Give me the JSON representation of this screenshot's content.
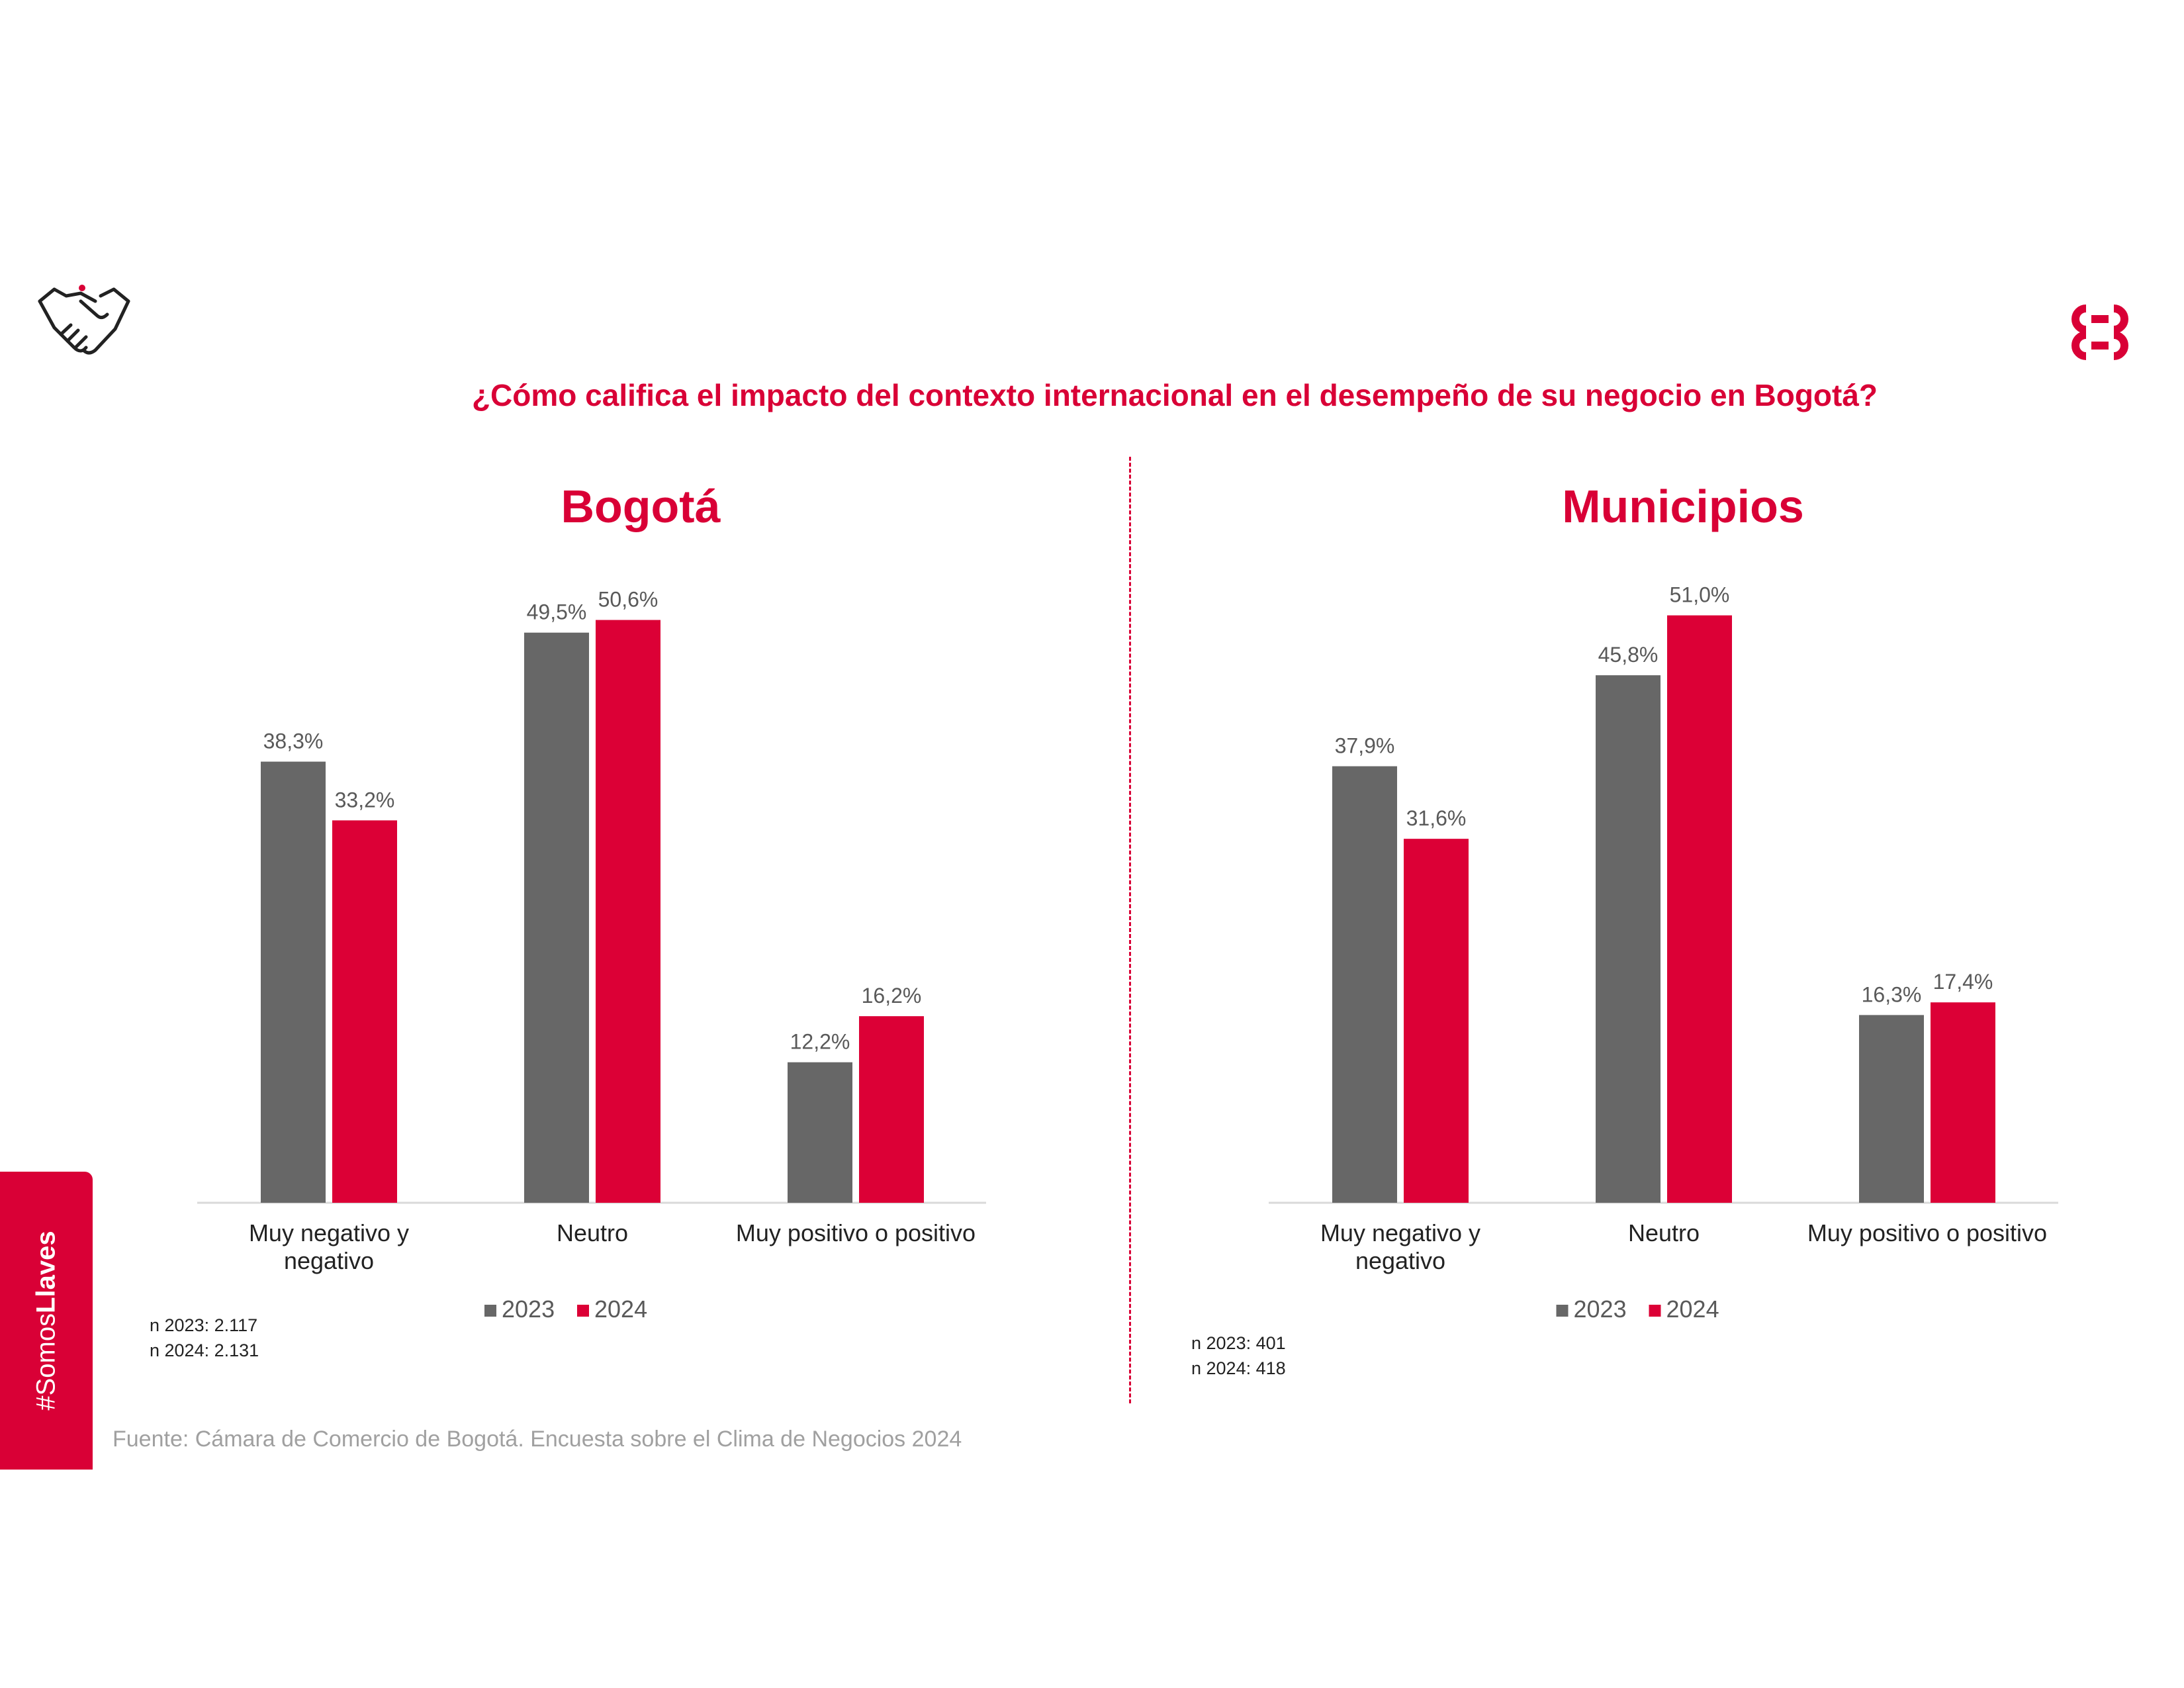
{
  "header": {
    "title": "¿Cómo califica el impacto del contexto internacional en el desempeño de su negocio en Bogotá?"
  },
  "icons": {
    "left": "handshake-icon",
    "right": "ccb-logo"
  },
  "colors": {
    "accent": "#d90036",
    "series_2023": "#676767",
    "series_2024": "#dc0036",
    "axis": "#d9d9d9",
    "labels": "#595959"
  },
  "chart_data": [
    {
      "type": "bar",
      "title": "Bogotá",
      "categories": [
        [
          "Muy negativo y",
          "negativo"
        ],
        [
          "Neutro"
        ],
        [
          "Muy positivo o positivo"
        ]
      ],
      "series": [
        {
          "name": "2023",
          "values": [
            38.3,
            49.5,
            12.2
          ],
          "labels": [
            "38,3%",
            "49,5%",
            "12,2%"
          ]
        },
        {
          "name": "2024",
          "values": [
            33.2,
            50.6,
            16.2
          ],
          "labels": [
            "33,2%",
            "50,6%",
            "16,2%"
          ]
        }
      ],
      "ylim": [
        0,
        60
      ],
      "legend": "bottom",
      "grid": false,
      "notes": [
        "n 2023: 2.117",
        "n 2024: 2.131"
      ]
    },
    {
      "type": "bar",
      "title": "Municipios",
      "categories": [
        [
          "Muy negativo y",
          "negativo"
        ],
        [
          "Neutro"
        ],
        [
          "Muy positivo o positivo"
        ]
      ],
      "series": [
        {
          "name": "2023",
          "values": [
            37.9,
            45.8,
            16.3
          ],
          "labels": [
            "37,9%",
            "45,8%",
            "16,3%"
          ]
        },
        {
          "name": "2024",
          "values": [
            31.6,
            51.0,
            17.4
          ],
          "labels": [
            "31,6%",
            "51,0%",
            "17,4%"
          ]
        }
      ],
      "ylim": [
        0,
        60
      ],
      "legend": "bottom",
      "grid": false,
      "notes": [
        "n 2023: 401",
        "n 2024: 418"
      ]
    }
  ],
  "sidebar": {
    "tag_prefix": "#Somos",
    "tag_bold": "Llaves"
  },
  "footer": {
    "source": "Fuente: Cámara de Comercio de Bogotá. Encuesta sobre el Clima de Negocios 2024"
  }
}
